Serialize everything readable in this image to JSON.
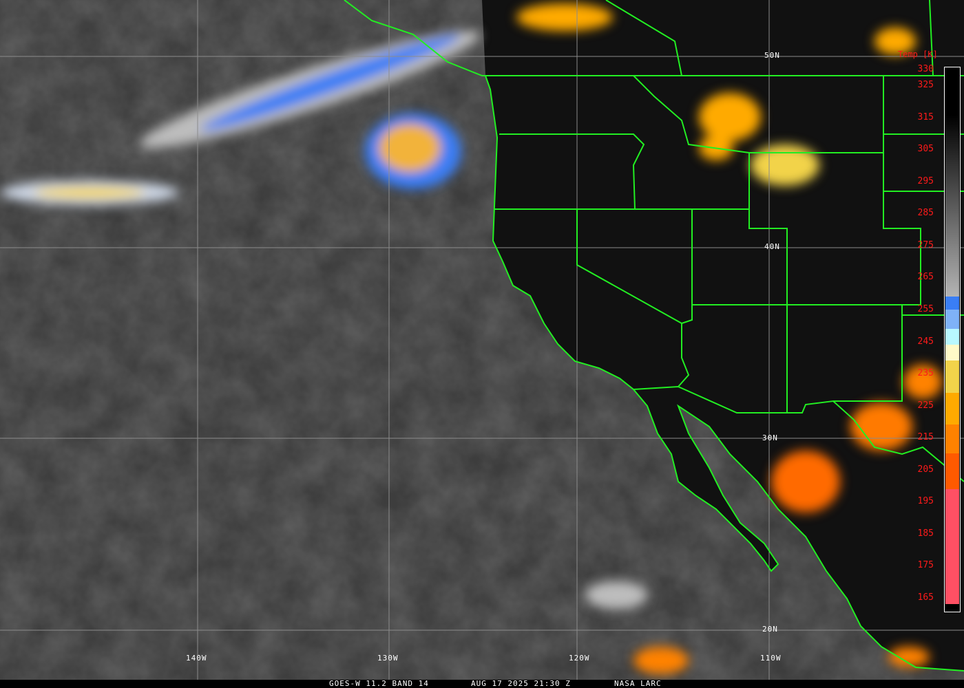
{
  "caption": {
    "satellite": "GOES-W 11.2 BAND 14",
    "datetime": "AUG 17 2025 21:30 Z",
    "source": "NASA LARC"
  },
  "latitude_labels": [
    "50N",
    "40N",
    "30N",
    "20N"
  ],
  "longitude_labels": [
    "140W",
    "130W",
    "120W",
    "110W"
  ],
  "legend": {
    "title": "Temp [K]",
    "ticks": [
      "330",
      "325",
      "315",
      "305",
      "295",
      "285",
      "275",
      "265",
      "255",
      "245",
      "235",
      "225",
      "215",
      "205",
      "195",
      "185",
      "175",
      "165"
    ],
    "color_bands": [
      {
        "from_k": 330,
        "to_k": 259,
        "color": "gradient #000000 to #b4b4b4"
      },
      {
        "from_k": 259,
        "to_k": 255,
        "color": "#3a7ef5"
      },
      {
        "from_k": 255,
        "to_k": 249,
        "color": "#7fb2f7"
      },
      {
        "from_k": 249,
        "to_k": 244,
        "color": "#b8f8ff"
      },
      {
        "from_k": 244,
        "to_k": 239,
        "color": "#fffac8"
      },
      {
        "from_k": 239,
        "to_k": 229,
        "color": "#f2d34a"
      },
      {
        "from_k": 229,
        "to_k": 219,
        "color": "#ffaa00"
      },
      {
        "from_k": 219,
        "to_k": 210,
        "color": "#ff8200"
      },
      {
        "from_k": 210,
        "to_k": 199,
        "color": "#ff5a00"
      },
      {
        "from_k": 199,
        "to_k": 163,
        "color": "#ff5064"
      }
    ]
  },
  "colors": {
    "borders": "#22ee22",
    "grid": "#8c8c8c",
    "labels": "#ffffff",
    "legend_text": "#ff1a1a"
  }
}
